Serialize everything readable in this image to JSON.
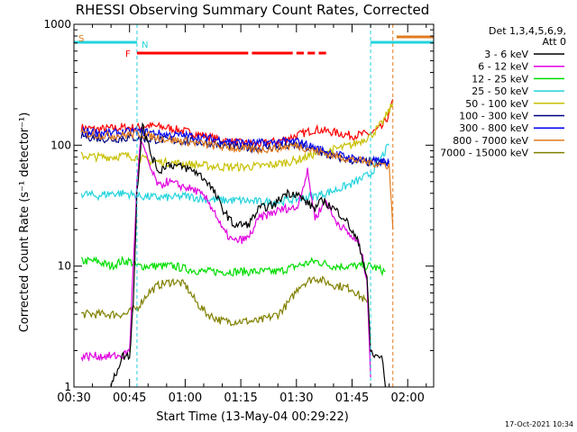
{
  "chart_data": {
    "type": "line",
    "title": "RHESSI Observing Summary Count Rates, Corrected",
    "xlabel": "Start Time (13-May-04 00:29:22)",
    "ylabel": "Corrected Count Rate (s⁻¹ detector⁻¹)",
    "y_scale": "log",
    "ylim": [
      1,
      1000
    ],
    "xlim": [
      "00:30",
      "02:07"
    ],
    "grid": false,
    "x_ticks": [
      "00:30",
      "00:45",
      "01:00",
      "01:15",
      "01:30",
      "01:45",
      "02:00"
    ],
    "y_ticks": [
      {
        "value": 1,
        "label": "1"
      },
      {
        "value": 10,
        "label": "10"
      },
      {
        "value": 100,
        "label": "100"
      },
      {
        "value": 1000,
        "label": "1000"
      }
    ],
    "legend_header": [
      "Det 1,3,4,5,6,9,",
      "Att 0"
    ],
    "legend_position": "right",
    "timestamp": "17-Oct-2021 10:34",
    "flag_letters": {
      "S": "S",
      "N": "N",
      "F": "F"
    },
    "flags": {
      "saa": {
        "color": "#22d3dd",
        "segments": [
          [
            "00:30",
            "00:47"
          ],
          [
            "01:50",
            "02:07"
          ]
        ]
      },
      "attenuator": {
        "color": "#e07b1e",
        "segments": [
          [
            "01:57",
            "02:07"
          ]
        ]
      },
      "flare": {
        "color": "#ff0000",
        "segments": [
          [
            "00:47",
            "01:17"
          ],
          [
            "01:18",
            "01:29"
          ],
          [
            "01:30",
            "01:32"
          ],
          [
            "01:33",
            "01:35"
          ],
          [
            "01:36",
            "01:38"
          ]
        ]
      }
    },
    "vlines": [
      {
        "time": "00:30",
        "color": "#22d3dd"
      },
      {
        "time": "00:47",
        "color": "#22d3dd"
      },
      {
        "time": "01:50",
        "color": "#22d3dd"
      },
      {
        "time": "01:56",
        "color": "#e07b1e"
      },
      {
        "time": "02:07",
        "color": "#22d3dd"
      }
    ],
    "data_gaps": [
      [
        "00:30",
        "00:31"
      ],
      [
        "01:54",
        "01:56"
      ]
    ],
    "series": [
      {
        "name": "3 - 6 keV",
        "color": "#000000",
        "points": [
          [
            "00:40",
            1
          ],
          [
            "00:43",
            1.8
          ],
          [
            "00:45",
            1.8
          ],
          [
            "00:46",
            5
          ],
          [
            "00:47",
            40
          ],
          [
            "00:48",
            100
          ],
          [
            "00:48:30",
            160
          ],
          [
            "00:49",
            130
          ],
          [
            "00:51",
            80
          ],
          [
            "00:53",
            60
          ],
          [
            "00:55",
            70
          ],
          [
            "01:00",
            65
          ],
          [
            "01:03",
            60
          ],
          [
            "01:06",
            50
          ],
          [
            "01:08",
            40
          ],
          [
            "01:10",
            30
          ],
          [
            "01:13",
            22
          ],
          [
            "01:17",
            22
          ],
          [
            "01:20",
            30
          ],
          [
            "01:24",
            32
          ],
          [
            "01:27",
            40
          ],
          [
            "01:30",
            40
          ],
          [
            "01:32",
            35
          ],
          [
            "01:35",
            30
          ],
          [
            "01:37",
            35
          ],
          [
            "01:40",
            30
          ],
          [
            "01:43",
            25
          ],
          [
            "01:47",
            15
          ],
          [
            "01:49",
            8
          ],
          [
            "01:50",
            2
          ],
          [
            "01:51",
            1.8
          ],
          [
            "01:53",
            1.8
          ],
          [
            "01:54",
            1
          ]
        ]
      },
      {
        "name": "6 - 12 keV",
        "color": "#e000e0",
        "points": [
          [
            "00:32",
            1.8
          ],
          [
            "00:43",
            1.8
          ],
          [
            "00:45",
            2
          ],
          [
            "00:46",
            10
          ],
          [
            "00:47",
            50
          ],
          [
            "00:48",
            110
          ],
          [
            "00:49",
            90
          ],
          [
            "00:51",
            60
          ],
          [
            "00:53",
            45
          ],
          [
            "00:55",
            50
          ],
          [
            "01:00",
            45
          ],
          [
            "01:03",
            42
          ],
          [
            "01:06",
            35
          ],
          [
            "01:08",
            28
          ],
          [
            "01:10",
            20
          ],
          [
            "01:13",
            16
          ],
          [
            "01:17",
            17
          ],
          [
            "01:20",
            25
          ],
          [
            "01:24",
            28
          ],
          [
            "01:27",
            30
          ],
          [
            "01:30",
            30
          ],
          [
            "01:33",
            60
          ],
          [
            "01:35",
            25
          ],
          [
            "01:38",
            35
          ],
          [
            "01:40",
            25
          ],
          [
            "01:43",
            20
          ],
          [
            "01:47",
            15
          ],
          [
            "01:49",
            8
          ],
          [
            "01:50",
            1.2
          ]
        ]
      },
      {
        "name": "12 - 25 keV",
        "color": "#00dd00",
        "points": [
          [
            "00:32",
            11
          ],
          [
            "00:36",
            11
          ],
          [
            "00:40",
            10
          ],
          [
            "00:43",
            11
          ],
          [
            "00:45",
            11
          ],
          [
            "00:47",
            10
          ],
          [
            "00:52",
            10
          ],
          [
            "00:57",
            10
          ],
          [
            "01:00",
            9.5
          ],
          [
            "01:05",
            9
          ],
          [
            "01:10",
            9
          ],
          [
            "01:15",
            9
          ],
          [
            "01:20",
            9
          ],
          [
            "01:25",
            9
          ],
          [
            "01:30",
            10
          ],
          [
            "01:35",
            11
          ],
          [
            "01:40",
            10
          ],
          [
            "01:45",
            10
          ],
          [
            "01:50",
            10
          ],
          [
            "01:54",
            9
          ]
        ]
      },
      {
        "name": "25 - 50 keV",
        "color": "#22d3dd",
        "points": [
          [
            "00:32",
            40
          ],
          [
            "00:36",
            38
          ],
          [
            "00:40",
            40
          ],
          [
            "00:44",
            40
          ],
          [
            "00:47",
            38
          ],
          [
            "00:52",
            37
          ],
          [
            "00:57",
            37
          ],
          [
            "01:00",
            38
          ],
          [
            "01:05",
            36
          ],
          [
            "01:10",
            35
          ],
          [
            "01:15",
            35
          ],
          [
            "01:20",
            34
          ],
          [
            "01:25",
            34
          ],
          [
            "01:30",
            36
          ],
          [
            "01:35",
            38
          ],
          [
            "01:40",
            42
          ],
          [
            "01:45",
            48
          ],
          [
            "01:50",
            58
          ],
          [
            "01:53",
            80
          ],
          [
            "01:55",
            100
          ]
        ]
      },
      {
        "name": "50 - 100 keV",
        "color": "#c8c000",
        "points": [
          [
            "00:32",
            82
          ],
          [
            "00:36",
            80
          ],
          [
            "00:40",
            80
          ],
          [
            "00:44",
            82
          ],
          [
            "00:47",
            80
          ],
          [
            "00:50",
            74
          ],
          [
            "00:55",
            72
          ],
          [
            "01:00",
            70
          ],
          [
            "01:05",
            68
          ],
          [
            "01:10",
            66
          ],
          [
            "01:15",
            66
          ],
          [
            "01:20",
            67
          ],
          [
            "01:25",
            70
          ],
          [
            "01:30",
            75
          ],
          [
            "01:35",
            85
          ],
          [
            "01:40",
            92
          ],
          [
            "01:45",
            100
          ],
          [
            "01:50",
            120
          ],
          [
            "01:53",
            150
          ],
          [
            "01:56",
            220
          ]
        ]
      },
      {
        "name": "100 - 300 keV",
        "color": "#000080",
        "points": [
          [
            "00:32",
            120
          ],
          [
            "00:36",
            115
          ],
          [
            "00:40",
            112
          ],
          [
            "00:44",
            115
          ],
          [
            "00:47",
            115
          ],
          [
            "00:50",
            112
          ],
          [
            "00:55",
            110
          ],
          [
            "01:00",
            108
          ],
          [
            "01:05",
            105
          ],
          [
            "01:10",
            100
          ],
          [
            "01:15",
            96
          ],
          [
            "01:20",
            95
          ],
          [
            "01:25",
            97
          ],
          [
            "01:30",
            100
          ],
          [
            "01:35",
            90
          ],
          [
            "01:40",
            80
          ],
          [
            "01:45",
            75
          ],
          [
            "01:50",
            72
          ],
          [
            "01:55",
            70
          ]
        ]
      },
      {
        "name": "300 - 800 keV",
        "color": "#0000ee",
        "points": [
          [
            "00:32",
            130
          ],
          [
            "00:36",
            128
          ],
          [
            "00:40",
            125
          ],
          [
            "00:44",
            128
          ],
          [
            "00:47",
            130
          ],
          [
            "00:50",
            128
          ],
          [
            "00:55",
            122
          ],
          [
            "01:00",
            120
          ],
          [
            "01:05",
            115
          ],
          [
            "01:10",
            110
          ],
          [
            "01:15",
            105
          ],
          [
            "01:20",
            104
          ],
          [
            "01:25",
            106
          ],
          [
            "01:30",
            108
          ],
          [
            "01:35",
            95
          ],
          [
            "01:40",
            85
          ],
          [
            "01:45",
            78
          ],
          [
            "01:50",
            74
          ],
          [
            "01:55",
            72
          ]
        ]
      },
      {
        "name": "800 - 7000 keV",
        "color": "#e07b1e",
        "points": [
          [
            "00:32",
            125
          ],
          [
            "00:36",
            122
          ],
          [
            "00:40",
            120
          ],
          [
            "00:44",
            122
          ],
          [
            "00:47",
            125
          ],
          [
            "00:50",
            120
          ],
          [
            "00:55",
            112
          ],
          [
            "01:00",
            108
          ],
          [
            "01:05",
            102
          ],
          [
            "01:10",
            97
          ],
          [
            "01:15",
            93
          ],
          [
            "01:20",
            92
          ],
          [
            "01:25",
            95
          ],
          [
            "01:30",
            100
          ],
          [
            "01:35",
            90
          ],
          [
            "01:40",
            82
          ],
          [
            "01:45",
            76
          ],
          [
            "01:50",
            72
          ],
          [
            "01:55",
            68
          ],
          [
            "01:56",
            20
          ]
        ]
      },
      {
        "name": "7000 - 15000 keV",
        "color": "#808000",
        "points": [
          [
            "00:32",
            4
          ],
          [
            "00:35",
            4
          ],
          [
            "00:40",
            4
          ],
          [
            "00:44",
            4
          ],
          [
            "00:47",
            4.5
          ],
          [
            "00:50",
            6
          ],
          [
            "00:53",
            7
          ],
          [
            "00:57",
            7.5
          ],
          [
            "01:00",
            7
          ],
          [
            "01:03",
            5
          ],
          [
            "01:06",
            4
          ],
          [
            "01:10",
            3.5
          ],
          [
            "01:15",
            3.5
          ],
          [
            "01:20",
            3.5
          ],
          [
            "01:25",
            4
          ],
          [
            "01:28",
            5
          ],
          [
            "01:31",
            7
          ],
          [
            "01:35",
            8
          ],
          [
            "01:40",
            7
          ],
          [
            "01:45",
            6.5
          ],
          [
            "01:49",
            5
          ]
        ]
      },
      {
        "name": "",
        "color": "#ff0000",
        "points": [
          [
            "00:32",
            140
          ],
          [
            "00:36",
            135
          ],
          [
            "00:40",
            138
          ],
          [
            "00:44",
            140
          ],
          [
            "00:47",
            140
          ],
          [
            "00:50",
            145
          ],
          [
            "00:55",
            140
          ],
          [
            "01:00",
            130
          ],
          [
            "01:05",
            120
          ],
          [
            "01:10",
            110
          ],
          [
            "01:15",
            104
          ],
          [
            "01:20",
            102
          ],
          [
            "01:25",
            108
          ],
          [
            "01:30",
            120
          ],
          [
            "01:35",
            135
          ],
          [
            "01:40",
            128
          ],
          [
            "01:45",
            120
          ],
          [
            "01:50",
            125
          ],
          [
            "01:53",
            140
          ],
          [
            "01:55",
            180
          ],
          [
            "01:56",
            240
          ]
        ]
      }
    ]
  }
}
